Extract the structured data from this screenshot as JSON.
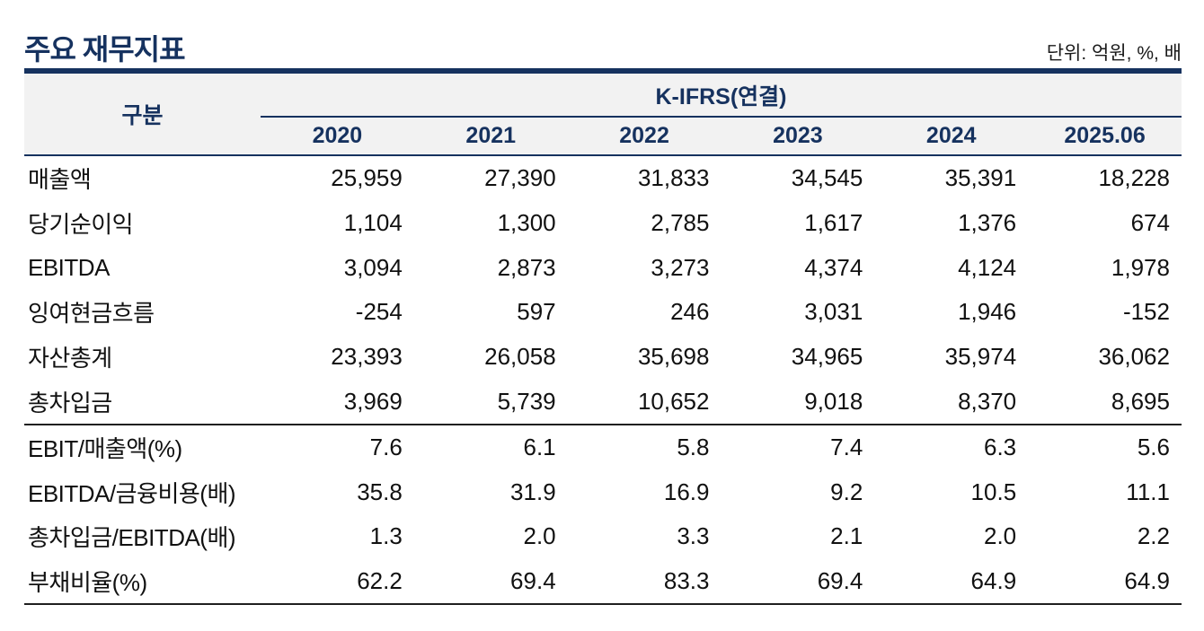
{
  "page": {
    "title": "주요 재무지표",
    "unit_note": "단위: 억원, %, 배"
  },
  "colors": {
    "navy": "#16325f",
    "header_bg": "#f2f2f2",
    "body_text": "#111111",
    "dark_line": "#1f1f1f"
  },
  "table": {
    "gubun_header": "구분",
    "group_header": "K-IFRS(연결)",
    "years": [
      "2020",
      "2021",
      "2022",
      "2023",
      "2024",
      "2025.06"
    ],
    "rows": [
      {
        "label": "매출액",
        "values": [
          "25,959",
          "27,390",
          "31,833",
          "34,545",
          "35,391",
          "18,228"
        ]
      },
      {
        "label": "당기순이익",
        "values": [
          "1,104",
          "1,300",
          "2,785",
          "1,617",
          "1,376",
          "674"
        ]
      },
      {
        "label": "EBITDA",
        "values": [
          "3,094",
          "2,873",
          "3,273",
          "4,374",
          "4,124",
          "1,978"
        ]
      },
      {
        "label": "잉여현금흐름",
        "values": [
          "-254",
          "597",
          "246",
          "3,031",
          "1,946",
          "-152"
        ]
      },
      {
        "label": "자산총계",
        "values": [
          "23,393",
          "26,058",
          "35,698",
          "34,965",
          "35,974",
          "36,062"
        ]
      },
      {
        "label": "총차입금",
        "values": [
          "3,969",
          "5,739",
          "10,652",
          "9,018",
          "8,370",
          "8,695"
        ]
      }
    ],
    "ratio_rows": [
      {
        "label": "EBIT/매출액(%)",
        "values": [
          "7.6",
          "6.1",
          "5.8",
          "7.4",
          "6.3",
          "5.6"
        ]
      },
      {
        "label": "EBITDA/금융비용(배)",
        "values": [
          "35.8",
          "31.9",
          "16.9",
          "9.2",
          "10.5",
          "11.1"
        ]
      },
      {
        "label": "총차입금/EBITDA(배)",
        "values": [
          "1.3",
          "2.0",
          "3.3",
          "2.1",
          "2.0",
          "2.2"
        ]
      },
      {
        "label": "부채비율(%)",
        "values": [
          "62.2",
          "69.4",
          "83.3",
          "69.4",
          "64.9",
          "64.9"
        ]
      }
    ]
  }
}
